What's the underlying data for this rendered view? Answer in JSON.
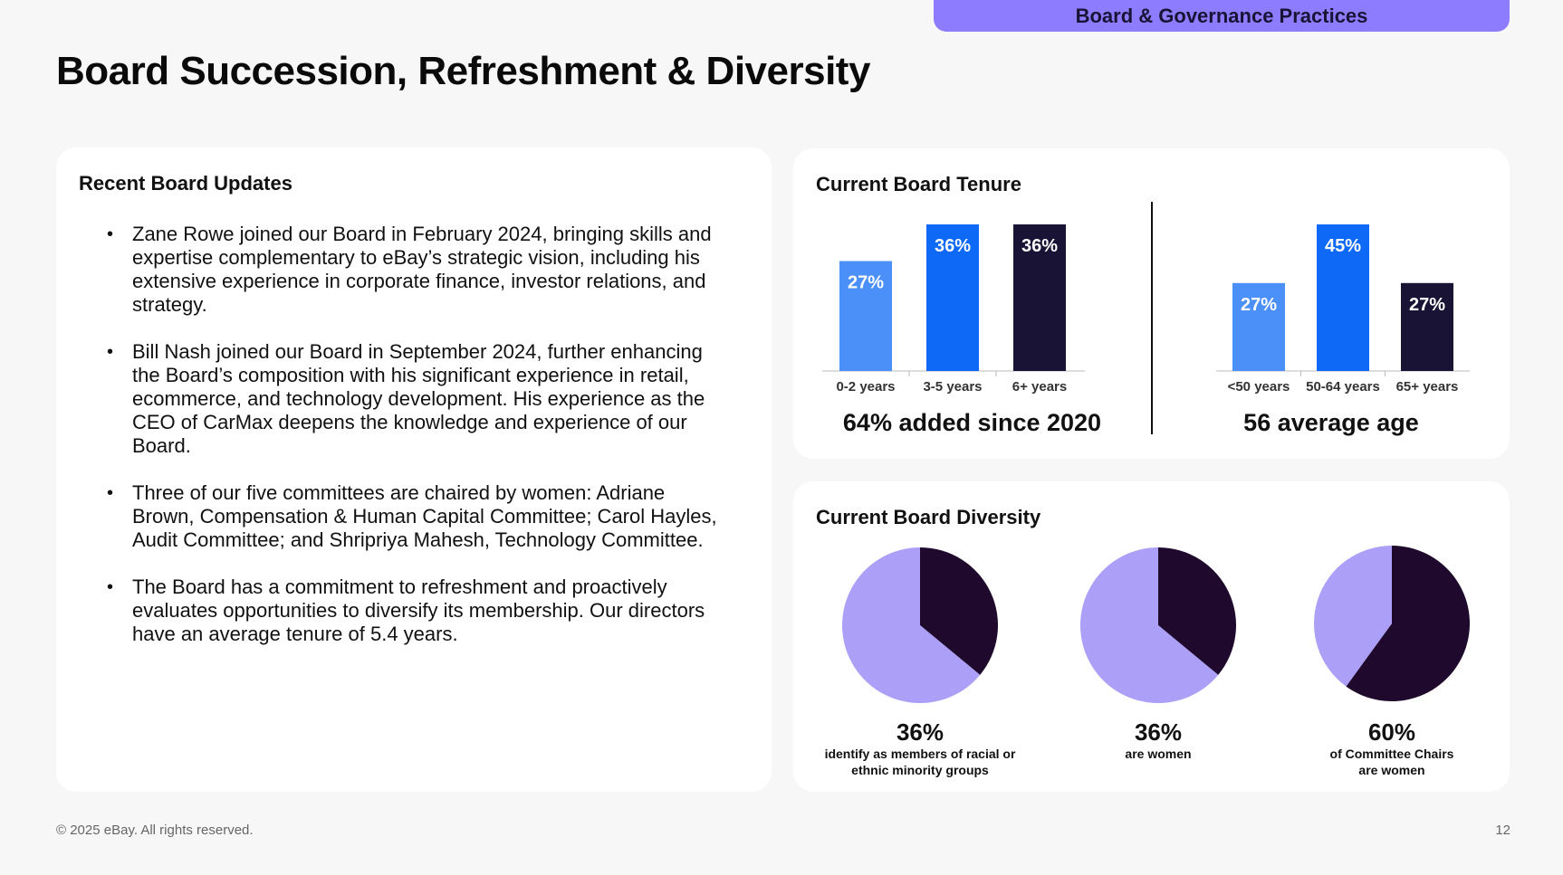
{
  "header": {
    "section_tab": "Board & Governance Practices",
    "title": "Board Succession, Refreshment & Diversity"
  },
  "updates": {
    "heading": "Recent Board Updates",
    "items": [
      "Zane Rowe joined our Board in February 2024, bringing skills and expertise complementary to eBay’s strategic vision, including his extensive experience in corporate finance, investor relations, and strategy.",
      "Bill Nash joined our Board in September 2024, further enhancing the Board’s composition with his significant experience in retail, ecommerce, and technology development. His experience as the CEO of CarMax deepens the knowledge and experience of our Board.",
      "Three of our five committees are chaired by women: Adriane Brown, Compensation & Human Capital Committee; Carol Hayles, Audit Committee; and Shripriya Mahesh, Technology Committee.",
      "The Board has a commitment to refreshment and proactively evaluates opportunities to diversify its membership. Our directors have an average tenure of 5.4 years."
    ]
  },
  "tenure": {
    "heading": "Current Board Tenure",
    "tenure_stat": "64% added since 2020",
    "age_stat": "56 average age"
  },
  "diversity": {
    "heading": "Current Board Diversity",
    "pies": [
      {
        "pct": "36%",
        "desc_line1": "identify as members of racial or",
        "desc_line2": "ethnic minority groups"
      },
      {
        "pct": "36%",
        "desc_line1": "are women",
        "desc_line2": ""
      },
      {
        "pct": "60%",
        "desc_line1": "of Committee Chairs",
        "desc_line2": "are women"
      }
    ]
  },
  "footer": {
    "copyright": "© 2025 eBay. All rights reserved.",
    "page": "12"
  },
  "colors": {
    "tab": "#8e7cff",
    "bar_light": "#4b8ff8",
    "bar_mid": "#0d69f6",
    "bar_dark": "#191436",
    "pie_light": "#ab9ff7",
    "pie_dark": "#1f0a2d"
  },
  "chart_data": [
    {
      "type": "bar",
      "categories": [
        "0-2 years",
        "3-5 years",
        "6+ years"
      ],
      "values": [
        27,
        36,
        36
      ],
      "labels": [
        "27%",
        "36%",
        "36%"
      ],
      "colors": [
        "#4b8ff8",
        "#0d69f6",
        "#191436"
      ],
      "ylim": [
        0,
        50
      ]
    },
    {
      "type": "bar",
      "categories": [
        "<50 years",
        "50-64 years",
        "65+ years"
      ],
      "values": [
        27,
        45,
        27
      ],
      "labels": [
        "27%",
        "45%",
        "27%"
      ],
      "colors": [
        "#4b8ff8",
        "#0d69f6",
        "#191436"
      ],
      "ylim": [
        0,
        50
      ]
    },
    {
      "type": "pie",
      "slices": [
        {
          "value": 36,
          "color": "#1f0a2d"
        },
        {
          "value": 64,
          "color": "#ab9ff7"
        }
      ]
    },
    {
      "type": "pie",
      "slices": [
        {
          "value": 36,
          "color": "#1f0a2d"
        },
        {
          "value": 64,
          "color": "#ab9ff7"
        }
      ]
    },
    {
      "type": "pie",
      "slices": [
        {
          "value": 60,
          "color": "#1f0a2d"
        },
        {
          "value": 40,
          "color": "#ab9ff7"
        }
      ]
    }
  ]
}
